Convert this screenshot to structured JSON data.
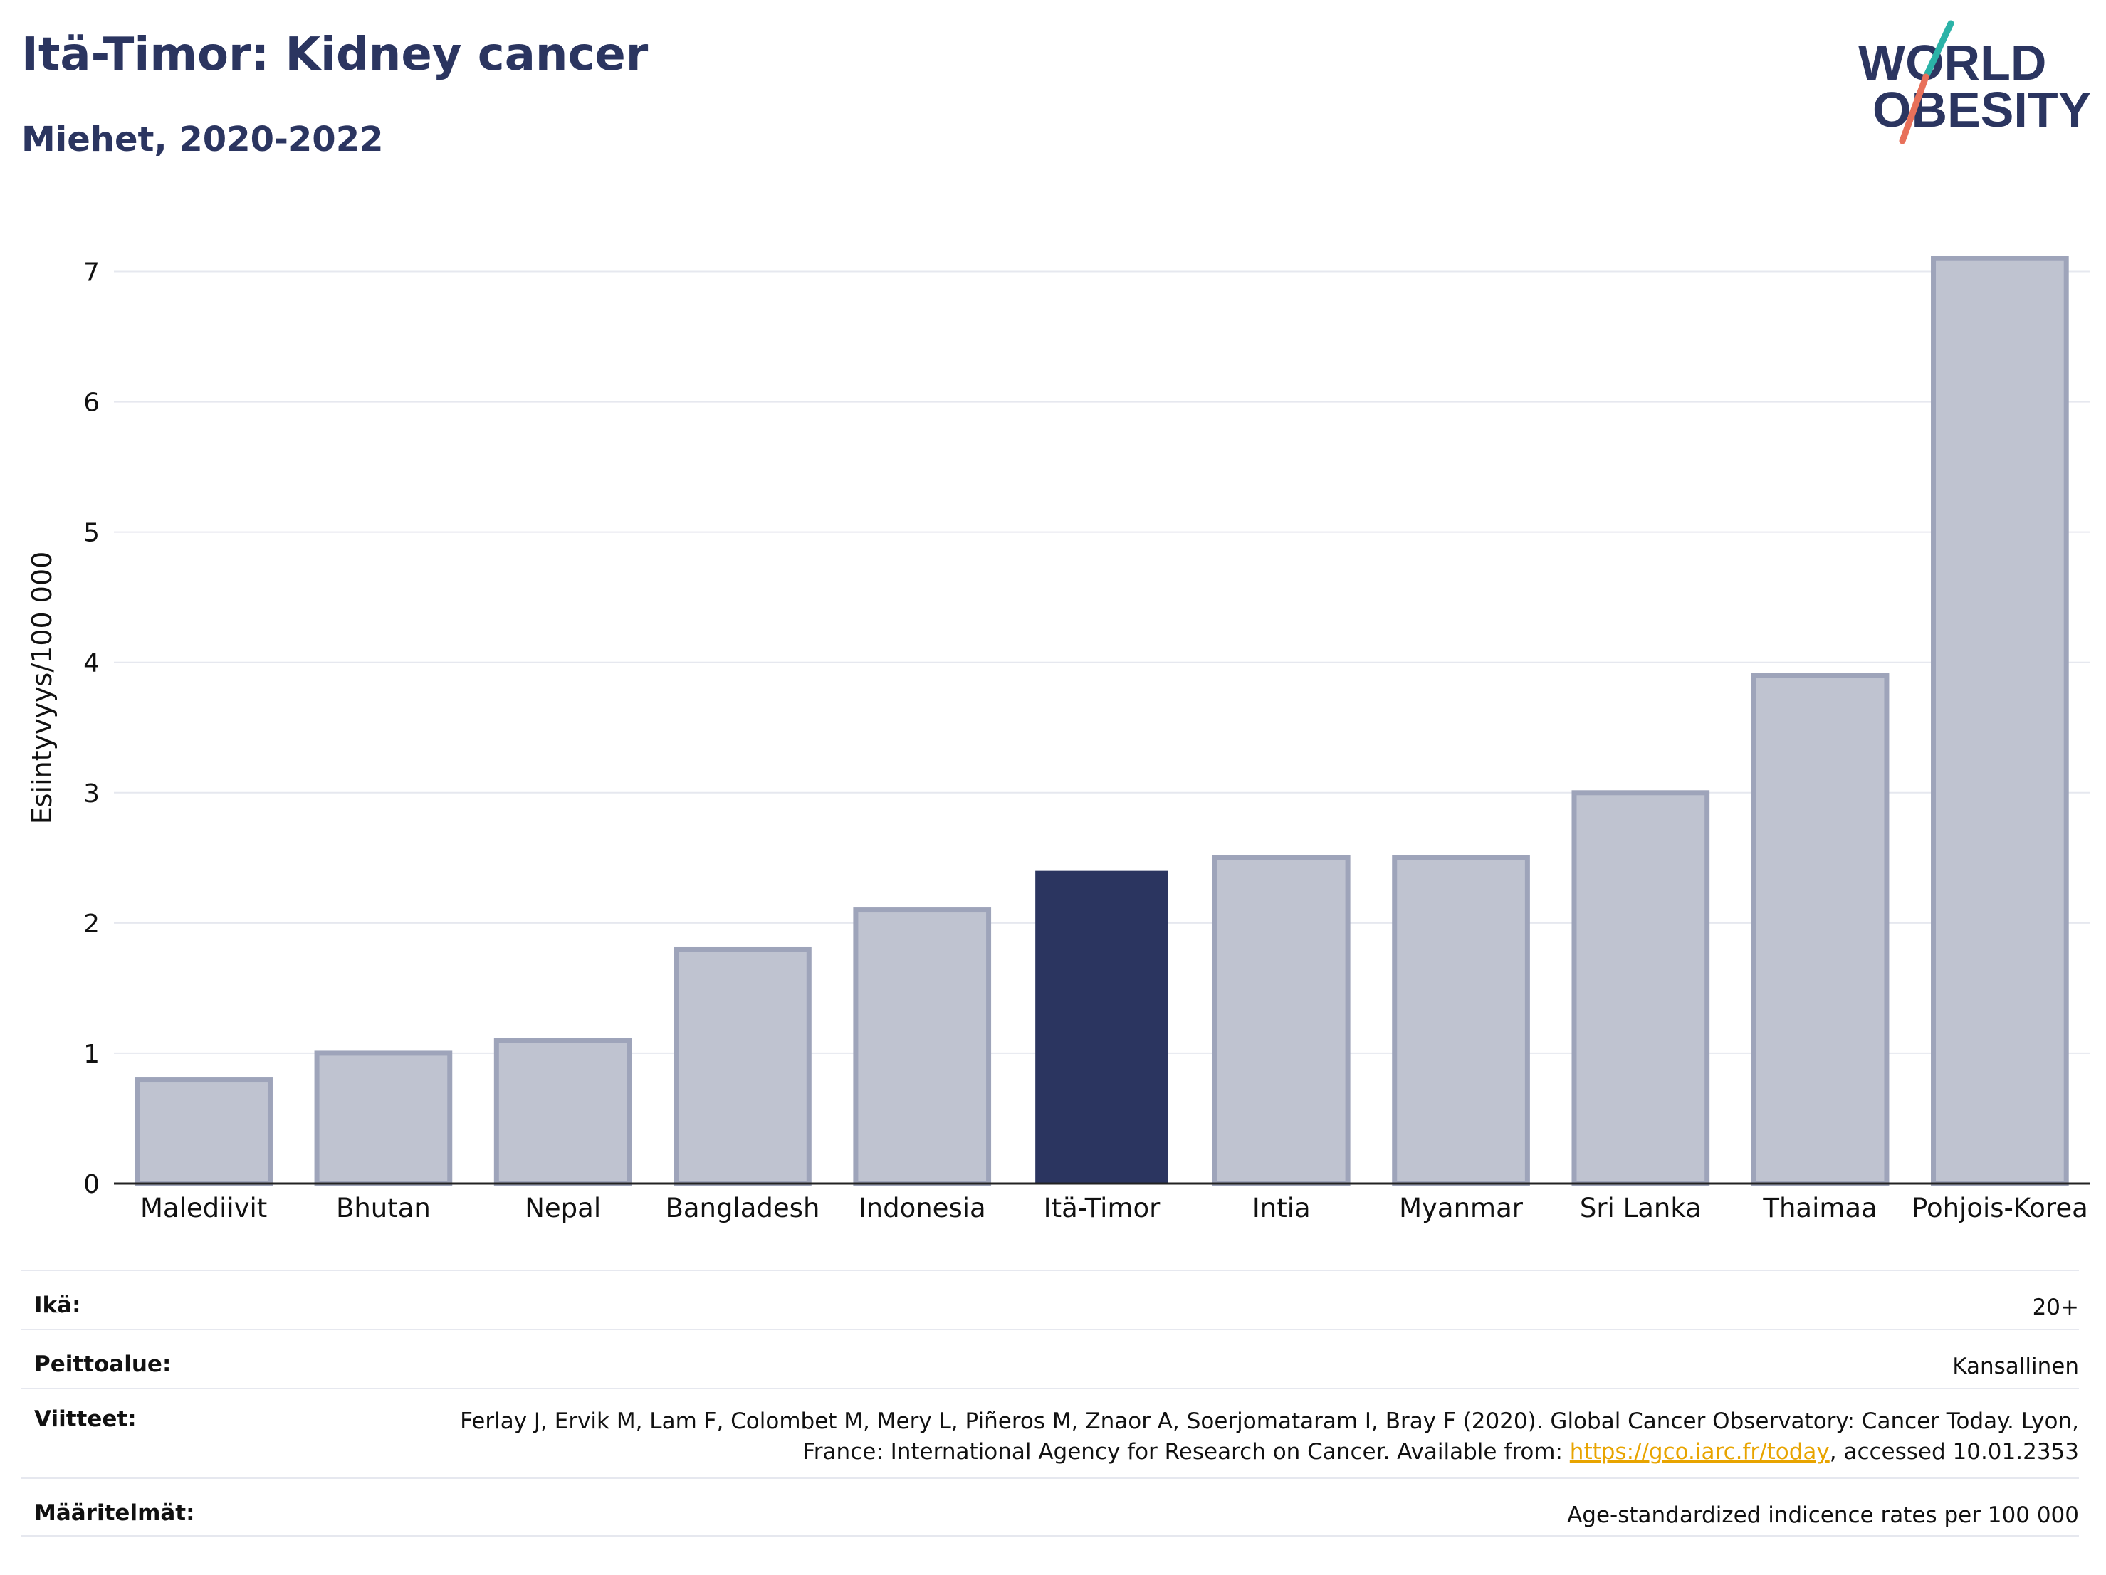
{
  "header": {
    "title": "Itä-Timor: Kidney cancer",
    "subtitle": "Miehet, 2020-2022"
  },
  "logo": {
    "line1": "WORLD",
    "line2": "OBESITY",
    "accent_teal": "#2bb3a8",
    "accent_coral": "#e8705a"
  },
  "colors": {
    "highlight_bar": "#2b3560",
    "other_bar": "#bfc3d0",
    "other_bar_border": "#9ea4ba",
    "grid": "#e6e8ef",
    "axis": "#222222"
  },
  "chart_data": {
    "type": "bar",
    "title": "Itä-Timor: Kidney cancer",
    "subtitle": "Miehet, 2020-2022",
    "xlabel": "",
    "ylabel": "Esiintyvyys/100 000",
    "categories": [
      "Malediivit",
      "Bhutan",
      "Nepal",
      "Bangladesh",
      "Indonesia",
      "Itä-Timor",
      "Intia",
      "Myanmar",
      "Sri Lanka",
      "Thaimaa",
      "Pohjois-Korea"
    ],
    "values": [
      0.8,
      1.0,
      1.1,
      1.8,
      2.1,
      2.4,
      2.5,
      2.5,
      3.0,
      3.9,
      7.1
    ],
    "highlight": "Itä-Timor",
    "ylim": [
      0,
      7.5
    ],
    "yticks": [
      0,
      1,
      2,
      3,
      4,
      5,
      6,
      7
    ],
    "grid": true,
    "legend": "none"
  },
  "meta": {
    "rows": [
      {
        "label": "Ikä:",
        "value": "20+"
      },
      {
        "label": "Peittoalue:",
        "value": "Kansallinen"
      },
      {
        "label": "Viitteet:",
        "value_before": "Ferlay J, Ervik M, Lam F, Colombet M, Mery L, Piñeros M, Znaor A, Soerjomataram I, Bray F (2020). Global Cancer Observatory: Cancer Today. Lyon, France: International Agency for Research on Cancer. Available from: ",
        "link": "https://gco.iarc.fr/today",
        "value_after": ", accessed 10.01.2353"
      },
      {
        "label": "Määritelmät:",
        "value": "Age-standardized indicence rates per 100 000"
      }
    ]
  }
}
